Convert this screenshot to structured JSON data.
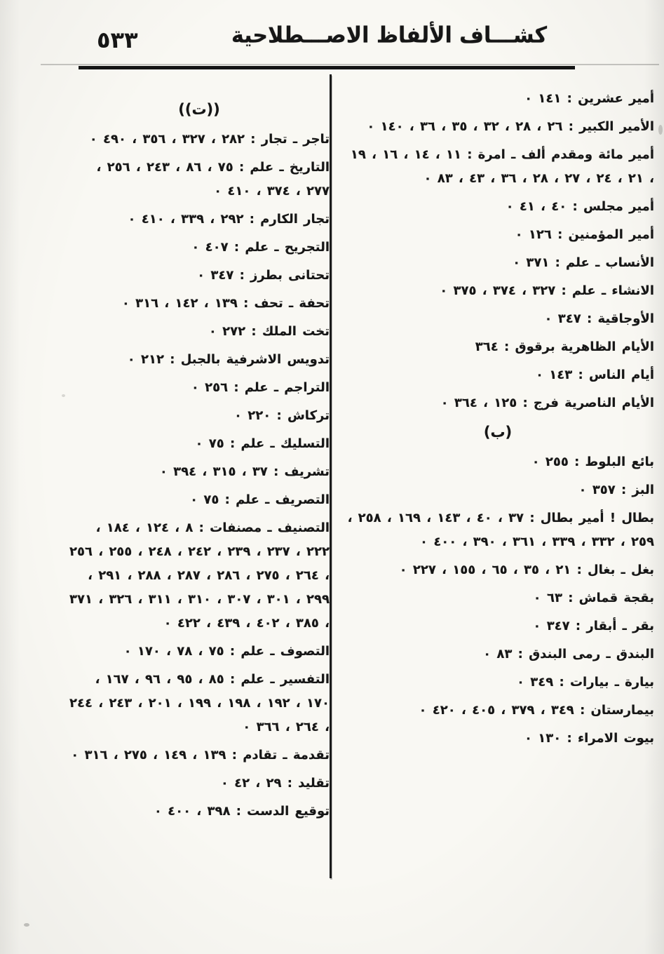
{
  "header": {
    "page_number": "٥٣٣",
    "title": "كشـــاف الألفاظ الاصـــطلاحية"
  },
  "index": {
    "section_alif": {
      "entries": [
        "أمير عشرين : ١٤١ ٠",
        "الأمير الكبير : ٢٦ ، ٢٨ ، ٣٢ ، ٣٥ ، ٣٦ ، ١٤٠ ٠",
        "أمير مائة ومقدم ألف ـ امرة : ١١ ، ١٤ ، ١٦ ، ١٩ ، ٢١ ، ٢٤ ، ٢٧ ، ٢٨ ، ٣٦ ، ٤٣ ، ٨٣ ٠",
        "أمير مجلس : ٤٠ ، ٤١ ٠",
        "أمير المؤمنين : ١٢٦ ٠",
        "الأنساب ـ علم : ٣٧١ ٠",
        "الانشاء ـ علم : ٣٢٧ ، ٣٧٤ ، ٣٧٥ ٠",
        "الأوجاقية : ٣٤٧ ٠",
        "الأيام الظاهرية برقوق : ٣٦٤",
        "أيام الناس : ١٤٣ ٠",
        "الأيام الناصرية فرج : ١٢٥ ، ٣٦٤ ٠"
      ]
    },
    "section_ba": {
      "header": "(ب)",
      "entries": [
        "بائع البلوط : ٢٥٥ ٠",
        "البز : ٣٥٧ ٠",
        "بطال ! أمير بطال : ٣٧ ، ٤٠ ، ١٤٣ ، ١٦٩ ، ٢٥٨ ، ٢٥٩ ، ٣٣٢ ، ٣٣٩ ، ٣٦١ ، ٣٩٠ ، ٤٠٠ ٠",
        "بغل ـ بغال : ٢١ ، ٣٥ ، ٦٥ ، ١٥٥ ، ٢٢٧ ٠",
        "بقجة قماش : ٦٣ ٠",
        "بقر ـ أبقار : ٣٤٧ ٠",
        "البندق ـ رمى البندق : ٨٣ ٠",
        "بيارة ـ بيارات : ٣٤٩ ٠",
        "بيمارستان : ٣٤٩ ، ٣٧٩ ، ٤٠٥ ، ٤٢٠ ٠",
        "بيوت الامراء : ١٣٠ ٠"
      ]
    },
    "section_ta": {
      "header": "((ت))",
      "entries": [
        "تاجر ـ تجار : ٢٨٢ ، ٣٢٧ ، ٣٥٦ ، ٤٩٠ ٠",
        "التاريخ ـ علم : ٧٥ ، ٨٦ ، ٢٤٣ ، ٢٥٦ ، ٢٧٧ ، ٣٧٤ ، ٤١٠ ٠",
        "تجار الكارم : ٢٩٢ ، ٣٣٩ ، ٤١٠ ٠",
        "التجريح ـ علم : ٤٠٧ ٠",
        "تحتانى بطرز : ٣٤٧ ٠",
        "تحفة ـ تحف : ١٣٩ ، ١٤٢ ، ٣١٦ ٠",
        "تخت الملك : ٢٧٢ ٠",
        "تدويس الاشرفية بالجبل : ٢١٢ ٠",
        "التراجم ـ علم : ٢٥٦ ٠",
        "تركاش : ٢٢٠ ٠",
        "التسليك ـ علم : ٧٥ ٠",
        "تشريف : ٣٧ ، ٣١٥ ، ٣٩٤ ٠",
        "التصريف ـ علم : ٧٥ ٠",
        "التصنيف ـ مصنفات : ٨ ، ١٢٤ ، ١٨٤ ، ٢٢٢ ، ٢٣٧ ، ٢٣٩ ، ٢٤٢ ، ٢٤٨ ، ٢٥٥ ، ٢٥٦ ، ٢٦٤ ، ٢٧٥ ، ٢٨٦ ، ٢٨٧ ، ٢٨٨ ، ٢٩١ ، ٢٩٩ ، ٣٠١ ، ٣٠٧ ، ٣١٠ ، ٣١١ ، ٣٢٦ ، ٣٧١ ، ٣٨٥ ، ٤٠٢ ، ٤٣٩ ، ٤٢٢ ٠",
        "التصوف ـ علم : ٧٥ ، ٧٨ ، ١٧٠ ٠",
        "التفسير ـ علم : ٨٥ ، ٩٥ ، ٩٦ ، ١٦٧ ، ١٧٠ ، ١٩٢ ، ١٩٨ ، ١٩٩ ، ٢٠١ ، ٢٤٣ ، ٢٤٤ ، ٢٦٤ ، ٣٦٦ ٠",
        "تقدمة ـ تقادم : ١٣٩ ، ١٤٩ ، ٢٧٥ ، ٣١٦ ٠",
        "تقليد : ٢٩ ، ٤٢ ٠",
        "توقيع الدست : ٣٩٨ ، ٤٠٠ ٠"
      ]
    }
  }
}
